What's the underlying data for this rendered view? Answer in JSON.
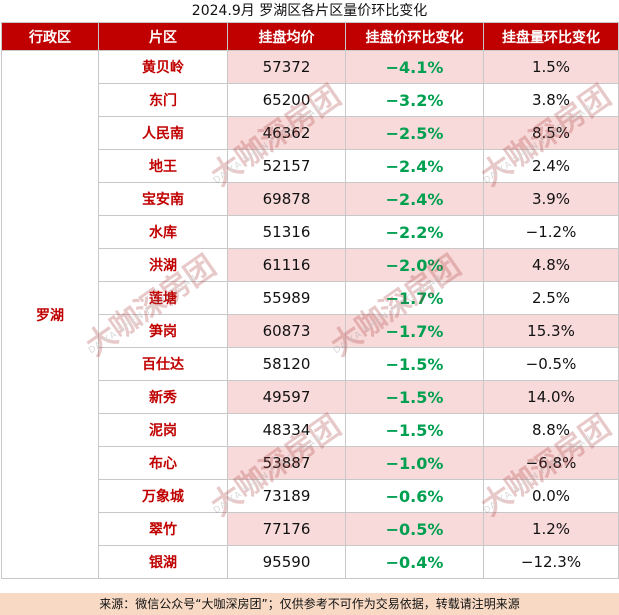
{
  "title": "2024.9月 罗湖区各片区量价环比变化",
  "headers": {
    "district": "行政区",
    "area": "片区",
    "price": "挂盘均价",
    "price_change": "挂盘价环比变化",
    "volume_change": "挂盘量环比变化"
  },
  "district": "罗湖",
  "rows": [
    {
      "area": "黄贝岭",
      "price": "57372",
      "price_change": "−4.1%",
      "volume_change": "1.5%"
    },
    {
      "area": "东门",
      "price": "65200",
      "price_change": "−3.2%",
      "volume_change": "3.8%"
    },
    {
      "area": "人民南",
      "price": "46362",
      "price_change": "−2.5%",
      "volume_change": "8.5%"
    },
    {
      "area": "地王",
      "price": "52157",
      "price_change": "−2.4%",
      "volume_change": "2.4%"
    },
    {
      "area": "宝安南",
      "price": "69878",
      "price_change": "−2.4%",
      "volume_change": "3.9%"
    },
    {
      "area": "水库",
      "price": "51316",
      "price_change": "−2.2%",
      "volume_change": "−1.2%"
    },
    {
      "area": "洪湖",
      "price": "61116",
      "price_change": "−2.0%",
      "volume_change": "4.8%"
    },
    {
      "area": "莲塘",
      "price": "55989",
      "price_change": "−1.7%",
      "volume_change": "2.5%"
    },
    {
      "area": "笋岗",
      "price": "60873",
      "price_change": "−1.7%",
      "volume_change": "15.3%"
    },
    {
      "area": "百仕达",
      "price": "58120",
      "price_change": "−1.5%",
      "volume_change": "−0.5%"
    },
    {
      "area": "新秀",
      "price": "49597",
      "price_change": "−1.5%",
      "volume_change": "14.0%"
    },
    {
      "area": "泥岗",
      "price": "48334",
      "price_change": "−1.5%",
      "volume_change": "8.8%"
    },
    {
      "area": "布心",
      "price": "53887",
      "price_change": "−1.0%",
      "volume_change": "−6.8%"
    },
    {
      "area": "万象城",
      "price": "73189",
      "price_change": "−0.6%",
      "volume_change": "0.0%"
    },
    {
      "area": "翠竹",
      "price": "77176",
      "price_change": "−0.5%",
      "volume_change": "1.2%"
    },
    {
      "area": "银湖",
      "price": "95590",
      "price_change": "−0.4%",
      "volume_change": "−12.3%"
    }
  ],
  "footer": "来源：微信公众号“大咖深房团”；仅供参考不可作为交易依据，转载请注明来源",
  "watermark": {
    "main": "大咖深房团",
    "sub": "DA KA SHEN FANG TUAN"
  },
  "colors": {
    "header_bg": "#c00000",
    "area_text": "#c00000",
    "price_change_text": "#00a050",
    "price_bg": "#f8dada",
    "footer_bg": "#f7d9c4"
  }
}
